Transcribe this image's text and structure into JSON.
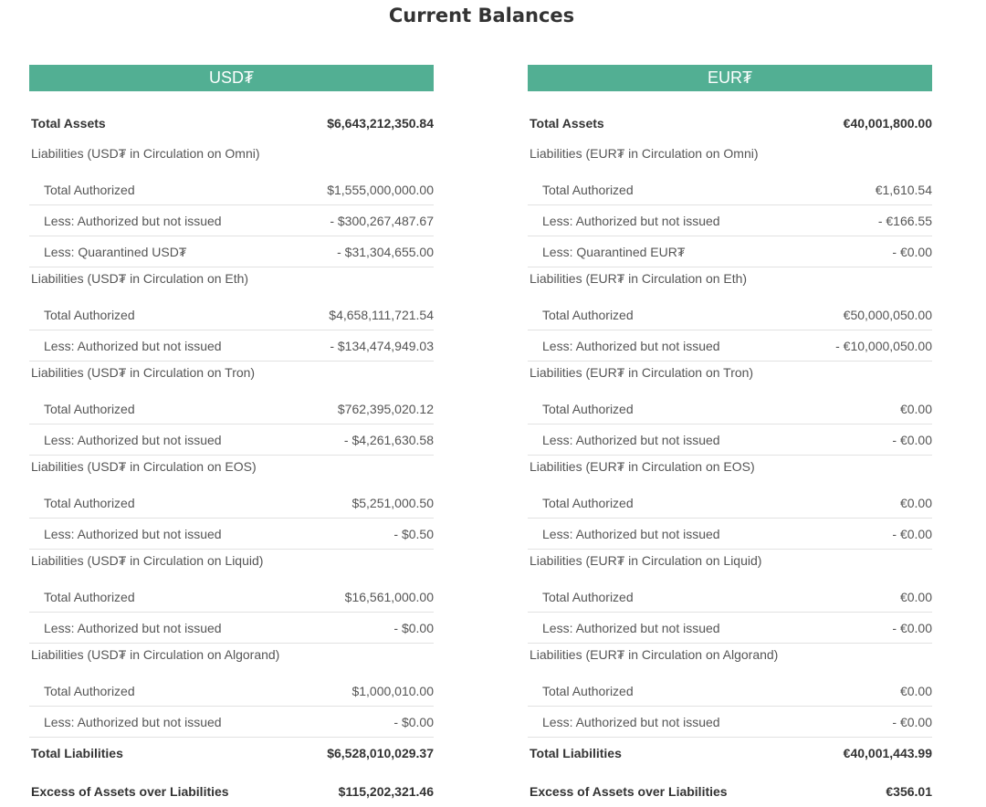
{
  "title": "Current Balances",
  "panels": [
    {
      "header": "USD₮",
      "total_assets": {
        "label": "Total Assets",
        "value": "$6,643,212,350.84"
      },
      "sections": [
        {
          "heading": "Liabilities (USD₮ in Circulation on Omni)",
          "rows": [
            {
              "label": "Total Authorized",
              "value": "$1,555,000,000.00"
            },
            {
              "label": "Less: Authorized but not issued",
              "value": "- $300,267,487.67"
            },
            {
              "label": "Less: Quarantined USD₮",
              "value": "- $31,304,655.00"
            }
          ]
        },
        {
          "heading": "Liabilities (USD₮ in Circulation on Eth)",
          "rows": [
            {
              "label": "Total Authorized",
              "value": "$4,658,111,721.54"
            },
            {
              "label": "Less: Authorized but not issued",
              "value": "- $134,474,949.03"
            }
          ]
        },
        {
          "heading": "Liabilities (USD₮ in Circulation on Tron)",
          "rows": [
            {
              "label": "Total Authorized",
              "value": "$762,395,020.12"
            },
            {
              "label": "Less: Authorized but not issued",
              "value": "- $4,261,630.58"
            }
          ]
        },
        {
          "heading": "Liabilities (USD₮ in Circulation on EOS)",
          "rows": [
            {
              "label": "Total Authorized",
              "value": "$5,251,000.50"
            },
            {
              "label": "Less: Authorized but not issued",
              "value": "- $0.50"
            }
          ]
        },
        {
          "heading": "Liabilities (USD₮ in Circulation on Liquid)",
          "rows": [
            {
              "label": "Total Authorized",
              "value": "$16,561,000.00"
            },
            {
              "label": "Less: Authorized but not issued",
              "value": "- $0.00"
            }
          ]
        },
        {
          "heading": "Liabilities (USD₮ in Circulation on Algorand)",
          "rows": [
            {
              "label": "Total Authorized",
              "value": "$1,000,010.00"
            },
            {
              "label": "Less: Authorized but not issued",
              "value": "- $0.00"
            }
          ]
        }
      ],
      "total_liabilities": {
        "label": "Total Liabilities",
        "value": "$6,528,010,029.37"
      },
      "excess": {
        "label": "Excess of Assets over Liabilities",
        "value": "$115,202,321.46"
      }
    },
    {
      "header": "EUR₮",
      "total_assets": {
        "label": "Total Assets",
        "value": "€40,001,800.00"
      },
      "sections": [
        {
          "heading": "Liabilities (EUR₮ in Circulation on Omni)",
          "rows": [
            {
              "label": "Total Authorized",
              "value": "€1,610.54"
            },
            {
              "label": "Less: Authorized but not issued",
              "value": "- €166.55"
            },
            {
              "label": "Less: Quarantined EUR₮",
              "value": "- €0.00"
            }
          ]
        },
        {
          "heading": "Liabilities (EUR₮ in Circulation on Eth)",
          "rows": [
            {
              "label": "Total Authorized",
              "value": "€50,000,050.00"
            },
            {
              "label": "Less: Authorized but not issued",
              "value": "- €10,000,050.00"
            }
          ]
        },
        {
          "heading": "Liabilities (EUR₮ in Circulation on Tron)",
          "rows": [
            {
              "label": "Total Authorized",
              "value": "€0.00"
            },
            {
              "label": "Less: Authorized but not issued",
              "value": "- €0.00"
            }
          ]
        },
        {
          "heading": "Liabilities (EUR₮ in Circulation on EOS)",
          "rows": [
            {
              "label": "Total Authorized",
              "value": "€0.00"
            },
            {
              "label": "Less: Authorized but not issued",
              "value": "- €0.00"
            }
          ]
        },
        {
          "heading": "Liabilities (EUR₮ in Circulation on Liquid)",
          "rows": [
            {
              "label": "Total Authorized",
              "value": "€0.00"
            },
            {
              "label": "Less: Authorized but not issued",
              "value": "- €0.00"
            }
          ]
        },
        {
          "heading": "Liabilities (EUR₮ in Circulation on Algorand)",
          "rows": [
            {
              "label": "Total Authorized",
              "value": "€0.00"
            },
            {
              "label": "Less: Authorized but not issued",
              "value": "- €0.00"
            }
          ]
        }
      ],
      "total_liabilities": {
        "label": "Total Liabilities",
        "value": "€40,001,443.99"
      },
      "excess": {
        "label": "Excess of Assets over Liabilities",
        "value": "€356.01"
      }
    }
  ]
}
